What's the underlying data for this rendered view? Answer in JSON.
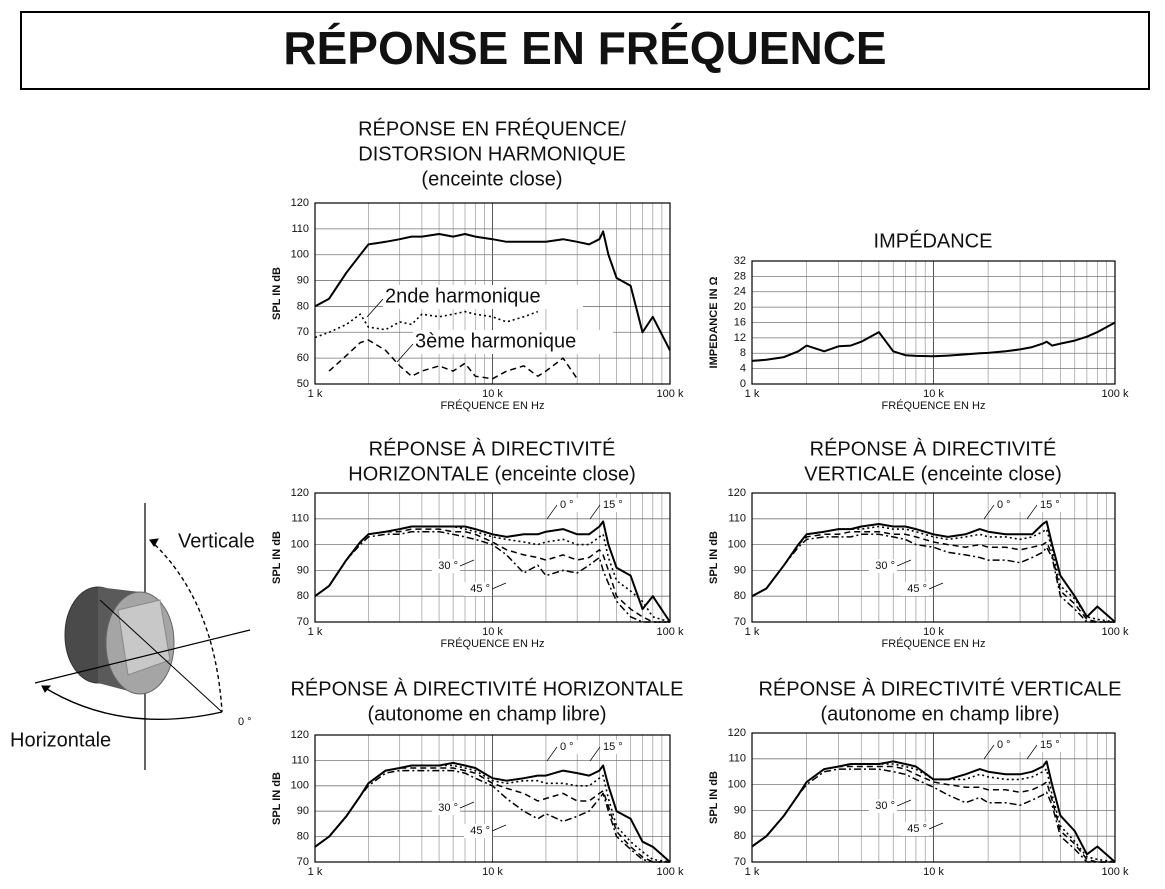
{
  "page_title": "RÉPONSE EN FRÉQUENCE",
  "diagram": {
    "labels": [
      "Verticale",
      "Horizontale",
      "0 °"
    ]
  },
  "chart_data": [
    {
      "type": "line",
      "title": [
        "RÉPONSE EN FRÉQUENCE/",
        "DISTORSION HARMONIQUE",
        "(enceinte close)"
      ],
      "x_label": "FRÉQUENCE EN Hz",
      "y_label": "SPL IN dB",
      "log_x": true,
      "grid": true,
      "xlim": [
        1000,
        100000
      ],
      "xticks": [
        {
          "value": 1000,
          "label": "1 k"
        },
        {
          "value": 10000,
          "label": "10 k"
        },
        {
          "value": 100000,
          "label": "100 k"
        }
      ],
      "ylim": [
        50,
        120
      ],
      "yticks": [
        50,
        60,
        70,
        80,
        90,
        100,
        110,
        120
      ],
      "x": [
        1000,
        1200,
        1500,
        1800,
        2000,
        2500,
        3000,
        3500,
        4000,
        5000,
        6000,
        7000,
        8000,
        10000,
        12000,
        15000,
        18000,
        20000,
        25000,
        30000,
        35000,
        40000,
        42000,
        45000,
        50000,
        60000,
        70000,
        80000,
        100000
      ],
      "series": [
        {
          "color": "#000000",
          "values": [
            80,
            83,
            93,
            100,
            104,
            105,
            106,
            107,
            107,
            108,
            107,
            108,
            107,
            106,
            105,
            105,
            105,
            105,
            106,
            105,
            104,
            106,
            109,
            100,
            91,
            88,
            70,
            76,
            63
          ]
        },
        {
          "name": "2nde harmonique",
          "color": "#000000",
          "values": [
            68,
            70,
            73,
            77,
            72,
            71,
            74,
            73,
            77,
            76,
            77,
            78,
            77,
            76,
            74,
            76,
            78,
            null,
            null,
            null,
            null,
            null,
            null,
            null,
            null,
            null,
            null,
            null,
            null
          ]
        },
        {
          "name": "3ème harmonique",
          "color": "#000000",
          "values": [
            null,
            55,
            61,
            66,
            67,
            63,
            57,
            53,
            55,
            57,
            55,
            58,
            53,
            52,
            55,
            57,
            53,
            55,
            60,
            52,
            null,
            null,
            null,
            null,
            null,
            null,
            null,
            null,
            null
          ]
        }
      ]
    },
    {
      "type": "line",
      "title": [
        "IMPÉDANCE"
      ],
      "x_label": "FRÉQUENCE EN Hz",
      "y_label": "IMPEDANCE IN Ω",
      "log_x": true,
      "grid": true,
      "xlim": [
        1000,
        100000
      ],
      "xticks": [
        {
          "value": 1000,
          "label": "1 k"
        },
        {
          "value": 10000,
          "label": "10 k"
        },
        {
          "value": 100000,
          "label": "100 k"
        }
      ],
      "ylim": [
        0,
        32
      ],
      "yticks": [
        0,
        4,
        8,
        12,
        16,
        20,
        24,
        28,
        32
      ],
      "x": [
        1000,
        1200,
        1500,
        1800,
        2000,
        2500,
        3000,
        3500,
        4000,
        5000,
        6000,
        7000,
        8000,
        10000,
        12000,
        15000,
        18000,
        20000,
        25000,
        30000,
        35000,
        40000,
        42000,
        45000,
        50000,
        60000,
        70000,
        80000,
        100000
      ],
      "series": [
        {
          "color": "#000000",
          "values": [
            6,
            6.3,
            7,
            8.5,
            10,
            8.5,
            9.8,
            10,
            11,
            13.5,
            8.5,
            7.5,
            7.3,
            7.2,
            7.4,
            7.7,
            8,
            8.1,
            8.5,
            9,
            9.6,
            10.5,
            11,
            10,
            10.5,
            11.3,
            12.3,
            13.5,
            16
          ]
        }
      ]
    },
    {
      "type": "line",
      "title": [
        "RÉPONSE À DIRECTIVITÉ",
        "HORIZONTALE (enceinte close)"
      ],
      "x_label": "FRÉQUENCE EN Hz",
      "y_label": "SPL IN dB",
      "log_x": true,
      "grid": true,
      "xlim": [
        1000,
        100000
      ],
      "xticks": [
        {
          "value": 1000,
          "label": "1 k"
        },
        {
          "value": 10000,
          "label": "10 k"
        },
        {
          "value": 100000,
          "label": "100 k"
        }
      ],
      "ylim": [
        70,
        120
      ],
      "yticks": [
        70,
        80,
        90,
        100,
        110,
        120
      ],
      "x": [
        1000,
        1200,
        1500,
        1800,
        2000,
        2500,
        3000,
        3500,
        4000,
        5000,
        6000,
        7000,
        8000,
        10000,
        12000,
        15000,
        18000,
        20000,
        25000,
        30000,
        35000,
        40000,
        42000,
        45000,
        50000,
        60000,
        70000,
        80000,
        100000
      ],
      "series": [
        {
          "name": "0 °",
          "color": "#000000",
          "values": [
            80,
            84,
            94,
            101,
            104,
            105,
            106,
            107,
            107,
            107,
            107,
            107,
            106,
            104,
            103,
            104,
            104,
            105,
            106,
            104,
            104,
            107,
            109,
            100,
            91,
            88,
            75,
            80,
            70
          ]
        },
        {
          "name": "15 °",
          "color": "#000000",
          "values": [
            80,
            84,
            94,
            101,
            104,
            105,
            106,
            107,
            107,
            107,
            107,
            106,
            105,
            103,
            102,
            101,
            100,
            101,
            102,
            100,
            100,
            103,
            104,
            95,
            86,
            82,
            78,
            72,
            70
          ]
        },
        {
          "name": "30 °",
          "color": "#000000",
          "values": [
            80,
            84,
            94,
            101,
            104,
            105,
            105,
            106,
            106,
            106,
            105,
            105,
            104,
            101,
            98,
            96,
            95,
            94,
            96,
            94,
            95,
            98,
            96,
            90,
            80,
            75,
            72,
            70,
            70
          ]
        },
        {
          "name": "45 °",
          "color": "#000000",
          "values": [
            80,
            84,
            94,
            100,
            103,
            104,
            104,
            105,
            105,
            105,
            104,
            103,
            102,
            100,
            96,
            89,
            92,
            88,
            90,
            89,
            92,
            95,
            90,
            85,
            78,
            72,
            70,
            70,
            70
          ]
        }
      ]
    },
    {
      "type": "line",
      "title": [
        "RÉPONSE À DIRECTIVITÉ",
        "VERTICALE (enceinte close)"
      ],
      "x_label": "FRÉQUENCE EN Hz",
      "y_label": "SPL IN dB",
      "log_x": true,
      "grid": true,
      "xlim": [
        1000,
        100000
      ],
      "xticks": [
        {
          "value": 1000,
          "label": "1 k"
        },
        {
          "value": 10000,
          "label": "10 k"
        },
        {
          "value": 100000,
          "label": "100 k"
        }
      ],
      "ylim": [
        70,
        120
      ],
      "yticks": [
        70,
        80,
        90,
        100,
        110,
        120
      ],
      "x": [
        1000,
        1200,
        1500,
        1800,
        2000,
        2500,
        3000,
        3500,
        4000,
        5000,
        6000,
        7000,
        8000,
        10000,
        12000,
        15000,
        18000,
        20000,
        25000,
        30000,
        35000,
        40000,
        42000,
        45000,
        50000,
        60000,
        70000,
        80000,
        100000
      ],
      "series": [
        {
          "name": "0 °",
          "color": "#000000",
          "values": [
            80,
            83,
            92,
            100,
            104,
            105,
            106,
            106,
            107,
            108,
            107,
            107,
            106,
            104,
            103,
            104,
            106,
            105,
            104,
            104,
            104,
            108,
            109,
            100,
            88,
            80,
            72,
            76,
            70
          ]
        },
        {
          "name": "15 °",
          "color": "#000000",
          "values": [
            80,
            83,
            92,
            100,
            104,
            105,
            106,
            106,
            106,
            107,
            106,
            106,
            105,
            103,
            102,
            103,
            104,
            103,
            103,
            102,
            103,
            105,
            106,
            98,
            84,
            79,
            72,
            71,
            70
          ]
        },
        {
          "name": "30 °",
          "color": "#000000",
          "values": [
            80,
            83,
            92,
            100,
            103,
            104,
            104,
            105,
            105,
            105,
            104,
            104,
            103,
            101,
            100,
            99,
            100,
            99,
            99,
            98,
            99,
            100,
            101,
            96,
            82,
            77,
            71,
            70,
            70
          ]
        },
        {
          "name": "45 °",
          "color": "#000000",
          "values": [
            80,
            83,
            92,
            99,
            102,
            103,
            103,
            103,
            104,
            104,
            103,
            102,
            100,
            99,
            97,
            96,
            95,
            94,
            94,
            93,
            95,
            97,
            99,
            95,
            80,
            75,
            70,
            70,
            70
          ]
        }
      ]
    },
    {
      "type": "line",
      "title": [
        "RÉPONSE À DIRECTIVITÉ HORIZONTALE",
        "(autonome en champ libre)"
      ],
      "y_label": "SPL IN dB",
      "log_x": true,
      "grid": true,
      "xlim": [
        1000,
        100000
      ],
      "xticks": [
        {
          "value": 1000,
          "label": "1 k"
        },
        {
          "value": 10000,
          "label": "10 k"
        },
        {
          "value": 100000,
          "label": "100 k"
        }
      ],
      "ylim": [
        70,
        120
      ],
      "yticks": [
        70,
        80,
        90,
        100,
        110,
        120
      ],
      "x": [
        1000,
        1200,
        1500,
        1800,
        2000,
        2500,
        3000,
        3500,
        4000,
        5000,
        6000,
        7000,
        8000,
        10000,
        12000,
        15000,
        18000,
        20000,
        25000,
        30000,
        35000,
        40000,
        42000,
        45000,
        50000,
        60000,
        70000,
        80000,
        100000
      ],
      "series": [
        {
          "name": "0 °",
          "color": "#000000",
          "values": [
            76,
            80,
            88,
            96,
            101,
            106,
            107,
            108,
            108,
            108,
            109,
            108,
            107,
            103,
            102,
            103,
            104,
            104,
            106,
            105,
            104,
            106,
            108,
            100,
            90,
            87,
            78,
            76,
            70
          ]
        },
        {
          "name": "15 °",
          "color": "#000000",
          "values": [
            76,
            80,
            88,
            96,
            101,
            106,
            107,
            108,
            108,
            108,
            108,
            107,
            106,
            102,
            101,
            102,
            102,
            101,
            101,
            100,
            100,
            103,
            104,
            95,
            84,
            78,
            74,
            71,
            70
          ]
        },
        {
          "name": "30 °",
          "color": "#000000",
          "values": [
            76,
            80,
            88,
            96,
            101,
            106,
            107,
            107,
            107,
            107,
            107,
            106,
            105,
            101,
            99,
            97,
            94,
            95,
            97,
            94,
            94,
            97,
            98,
            92,
            82,
            76,
            72,
            70,
            70
          ]
        },
        {
          "name": "45 °",
          "color": "#000000",
          "values": [
            76,
            80,
            88,
            96,
            100,
            105,
            106,
            106,
            106,
            106,
            106,
            105,
            103,
            100,
            95,
            90,
            87,
            89,
            86,
            88,
            90,
            95,
            97,
            90,
            80,
            75,
            71,
            70,
            70
          ]
        }
      ]
    },
    {
      "type": "line",
      "title": [
        "RÉPONSE À DIRECTIVITÉ VERTICALE",
        "(autonome en champ libre)"
      ],
      "y_label": "SPL IN dB",
      "log_x": true,
      "grid": true,
      "xlim": [
        1000,
        100000
      ],
      "xticks": [
        {
          "value": 1000,
          "label": "1 k"
        },
        {
          "value": 10000,
          "label": "10 k"
        },
        {
          "value": 100000,
          "label": "100 k"
        }
      ],
      "ylim": [
        70,
        120
      ],
      "yticks": [
        70,
        80,
        90,
        100,
        110,
        120
      ],
      "x": [
        1000,
        1200,
        1500,
        1800,
        2000,
        2500,
        3000,
        3500,
        4000,
        5000,
        6000,
        7000,
        8000,
        10000,
        12000,
        15000,
        18000,
        20000,
        25000,
        30000,
        35000,
        40000,
        42000,
        45000,
        50000,
        60000,
        70000,
        80000,
        100000
      ],
      "series": [
        {
          "name": "0 °",
          "color": "#000000",
          "values": [
            76,
            80,
            88,
            96,
            101,
            106,
            107,
            108,
            108,
            108,
            109,
            108,
            107,
            102,
            102,
            104,
            106,
            105,
            104,
            104,
            105,
            107,
            109,
            100,
            88,
            82,
            73,
            76,
            70
          ]
        },
        {
          "name": "15 °",
          "color": "#000000",
          "values": [
            76,
            80,
            88,
            96,
            101,
            106,
            107,
            108,
            108,
            108,
            108,
            107,
            106,
            102,
            102,
            102,
            104,
            103,
            102,
            102,
            103,
            105,
            106,
            96,
            84,
            78,
            72,
            71,
            70
          ]
        },
        {
          "name": "30 °",
          "color": "#000000",
          "values": [
            76,
            80,
            88,
            96,
            101,
            106,
            107,
            107,
            107,
            107,
            107,
            106,
            104,
            101,
            100,
            99,
            99,
            98,
            98,
            97,
            98,
            100,
            101,
            94,
            82,
            77,
            71,
            70,
            70
          ]
        },
        {
          "name": "45 °",
          "color": "#000000",
          "values": [
            76,
            80,
            88,
            96,
            100,
            105,
            106,
            106,
            106,
            106,
            105,
            104,
            102,
            99,
            96,
            93,
            95,
            93,
            93,
            92,
            94,
            96,
            97,
            92,
            80,
            75,
            70,
            70,
            70
          ]
        }
      ]
    }
  ]
}
